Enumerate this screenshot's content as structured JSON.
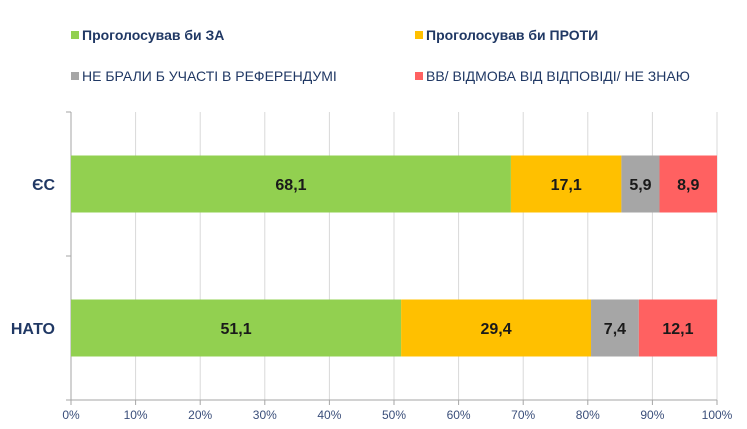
{
  "chart_data": {
    "type": "bar",
    "orientation": "horizontal",
    "stacked": true,
    "categories": [
      "ЄС",
      "НАТО"
    ],
    "series": [
      {
        "name": "Проголосував би ЗА",
        "color": "#92D050",
        "values": [
          68.1,
          51.1
        ],
        "labels": [
          "68,1",
          "51,1"
        ]
      },
      {
        "name": "Проголосував би ПРОТИ",
        "color": "#FFC000",
        "values": [
          17.1,
          29.4
        ],
        "labels": [
          "17,1",
          "29,4"
        ]
      },
      {
        "name": "НЕ БРАЛИ Б УЧАСТІ В РЕФЕРЕНДУМІ",
        "color": "#A6A6A6",
        "values": [
          5.9,
          7.4
        ],
        "labels": [
          "5,9",
          "7,4"
        ]
      },
      {
        "name": "ВВ/ ВІДМОВА ВІД ВІДПОВІДІ/ НЕ ЗНАЮ",
        "color": "#FF6161",
        "values": [
          8.9,
          12.1
        ],
        "labels": [
          "8,9",
          "12,1"
        ]
      }
    ],
    "xlim": [
      0,
      100
    ],
    "x_ticks": [
      0,
      10,
      20,
      30,
      40,
      50,
      60,
      70,
      80,
      90,
      100
    ],
    "x_tick_labels": [
      "0%",
      "10%",
      "20%",
      "30%",
      "40%",
      "50%",
      "60%",
      "70%",
      "80%",
      "90%",
      "100%"
    ],
    "grid": true,
    "legend_position": "top",
    "title": "",
    "xlabel": "",
    "ylabel": ""
  }
}
